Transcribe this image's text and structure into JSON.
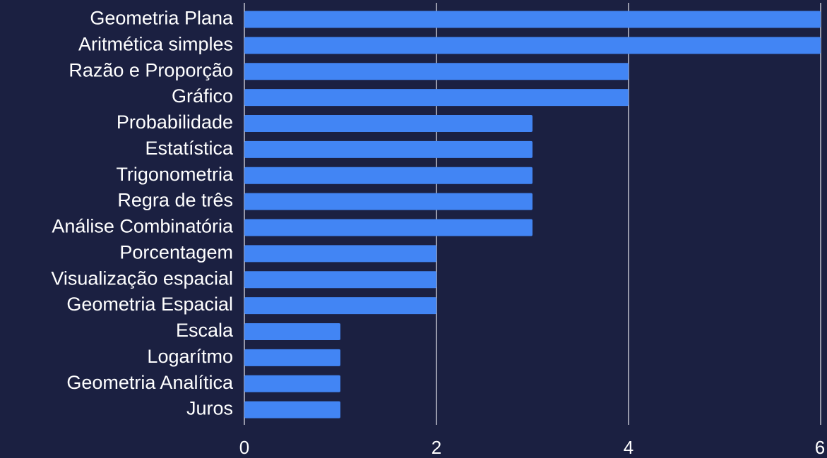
{
  "chart_data": {
    "type": "bar",
    "orientation": "horizontal",
    "categories": [
      "Geometria Plana",
      "Aritmética simples",
      "Razão e Proporção",
      "Gráfico",
      "Probabilidade",
      "Estatística",
      "Trigonometria",
      "Regra de três",
      "Análise Combinatória",
      "Porcentagem",
      "Visualização espacial",
      "Geometria Espacial",
      "Escala",
      "Logarítmo",
      "Geometria Analítica",
      "Juros"
    ],
    "values": [
      6,
      6,
      4,
      4,
      3,
      3,
      3,
      3,
      3,
      2,
      2,
      2,
      1,
      1,
      1,
      1
    ],
    "color": "#4285f4",
    "xlim": [
      0,
      6
    ],
    "xticks": [
      0,
      2,
      4,
      6
    ],
    "grid": true
  }
}
